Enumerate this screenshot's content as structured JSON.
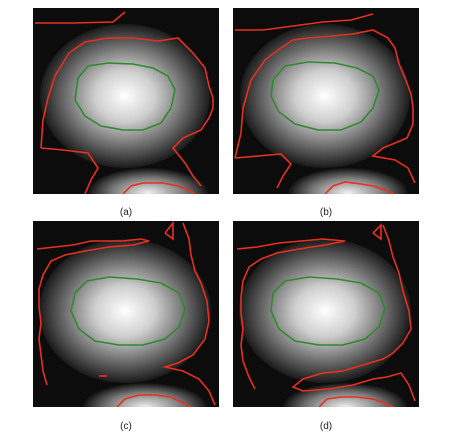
{
  "figure": {
    "panels": [
      {
        "id": "a",
        "caption": "(a)"
      },
      {
        "id": "b",
        "caption": "(b)"
      },
      {
        "id": "c",
        "caption": "(c)"
      },
      {
        "id": "d",
        "caption": "(d)"
      }
    ]
  },
  "colors": {
    "background": "#000000",
    "contour_outer": "#e8301e",
    "contour_inner": "#2f8a2f",
    "page": "#ffffff"
  }
}
